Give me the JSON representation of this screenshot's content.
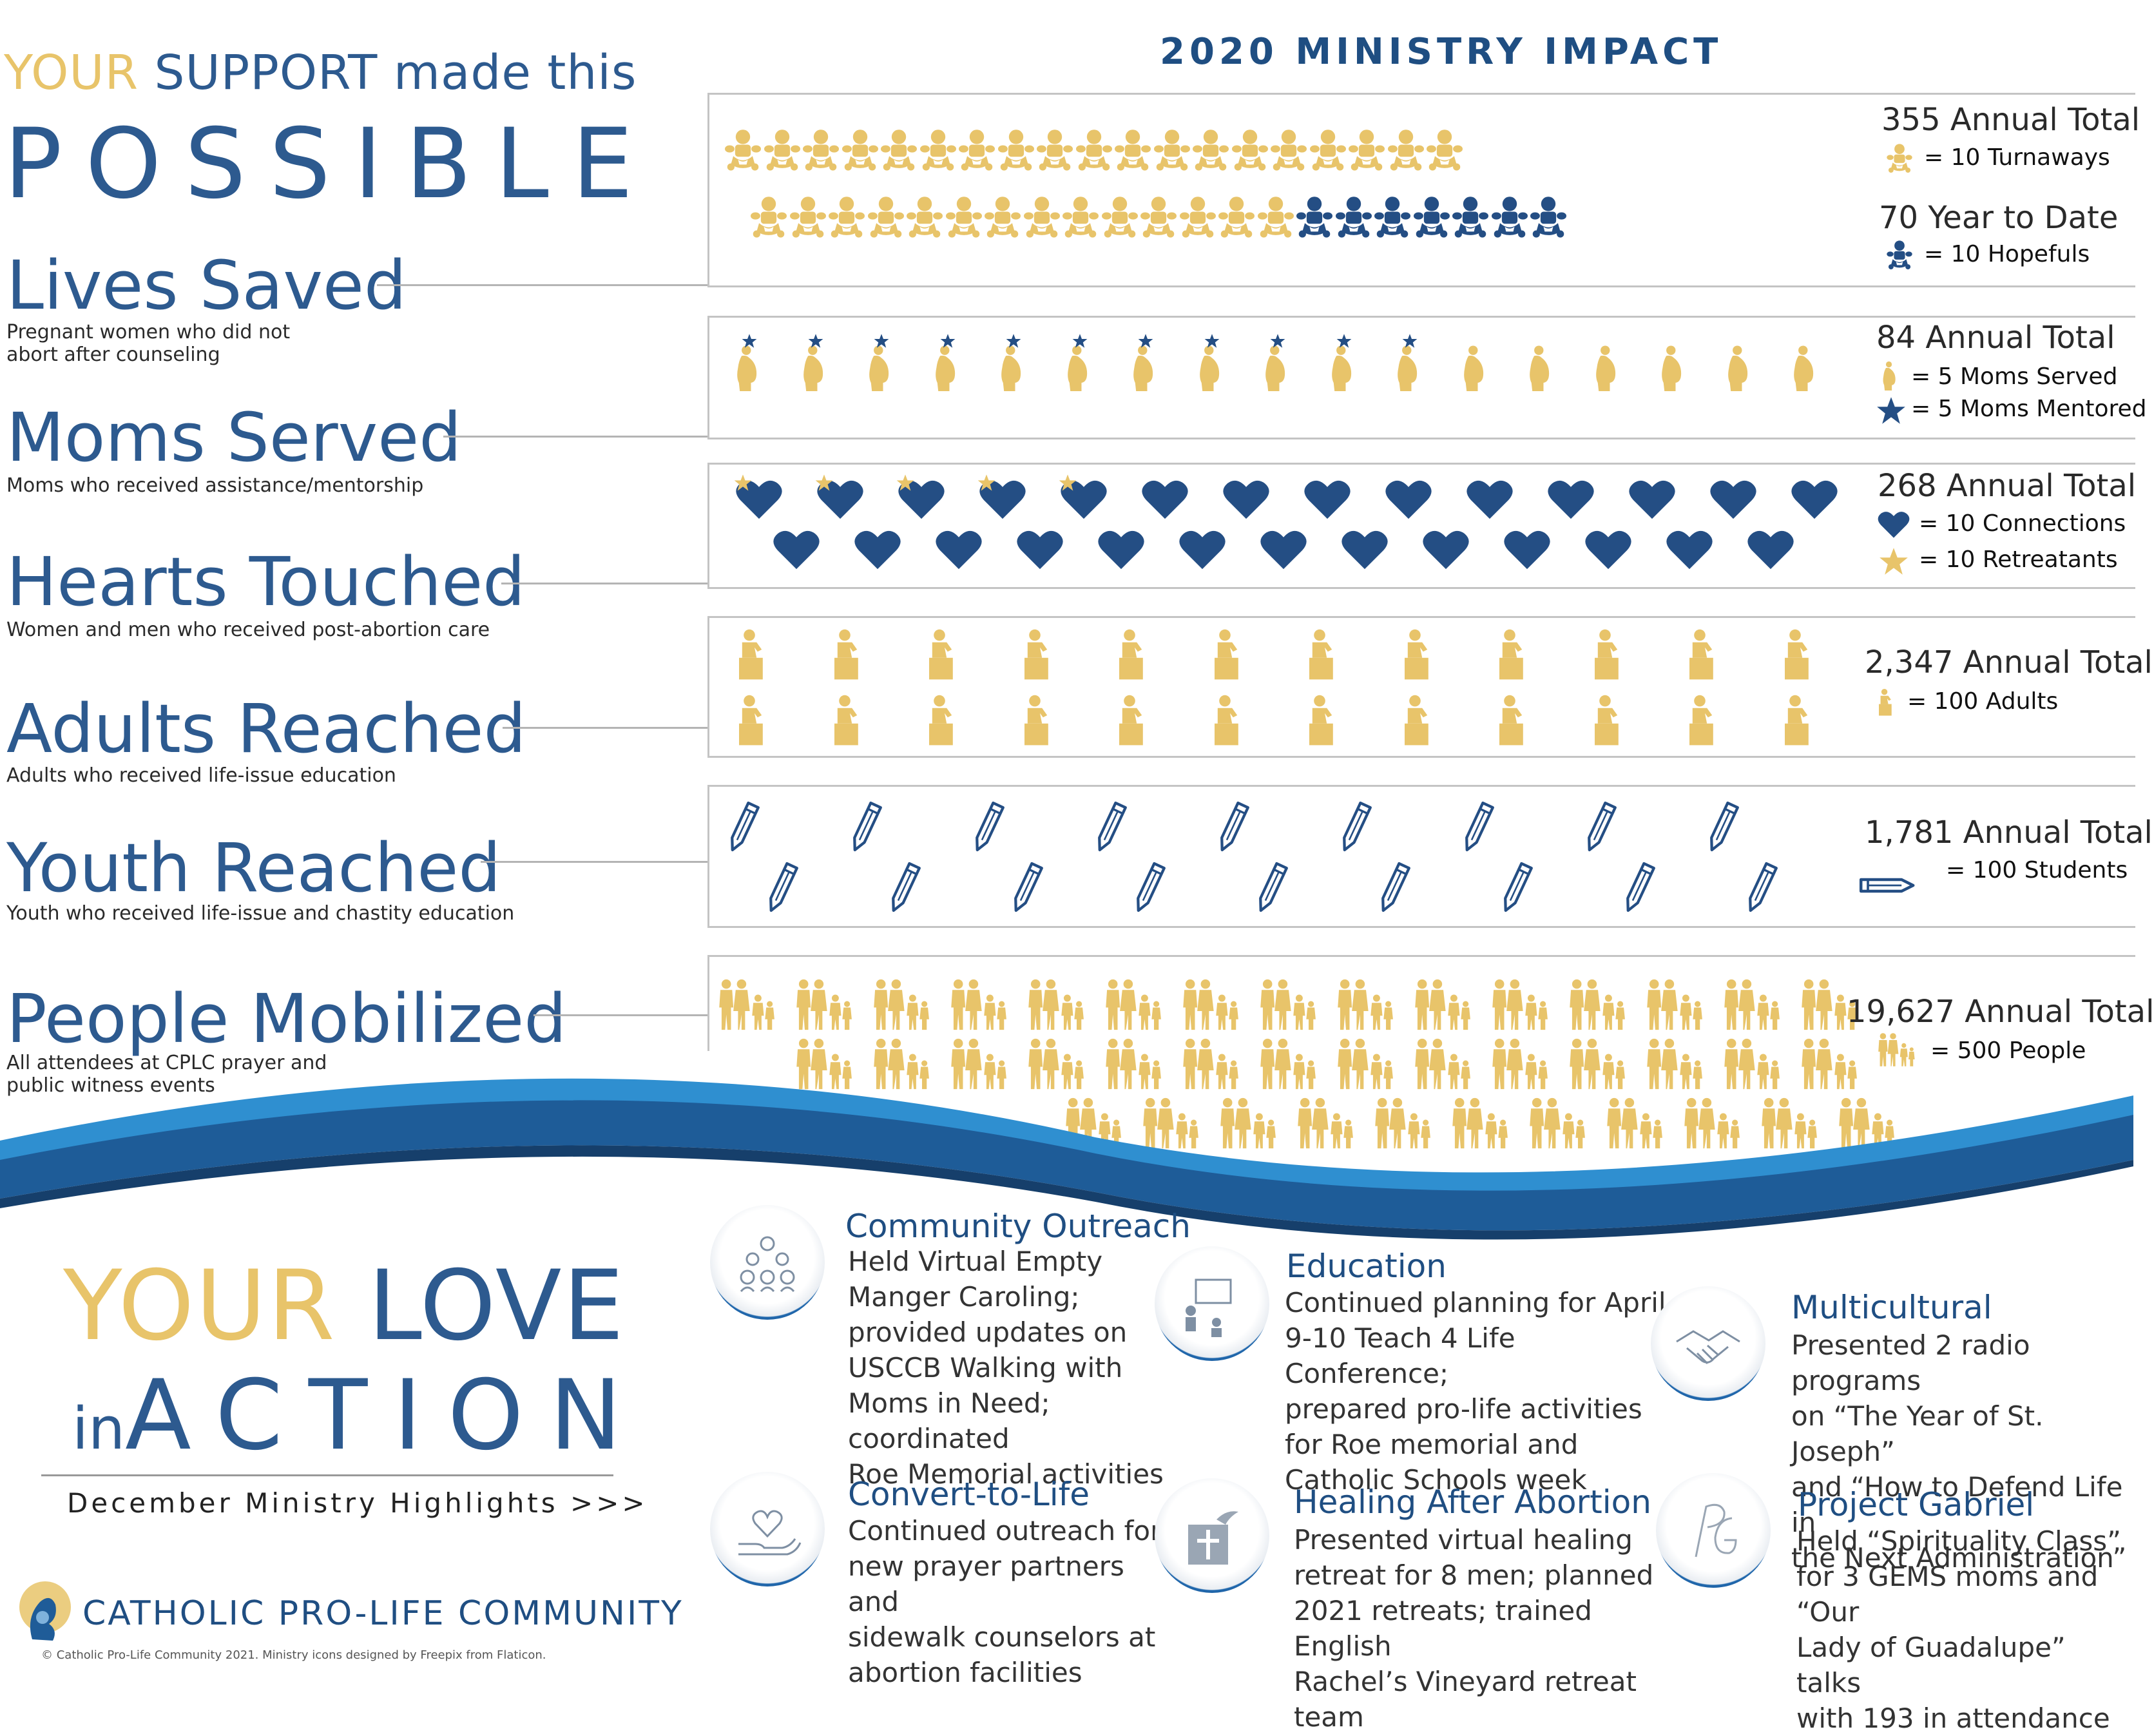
{
  "headline": {
    "your": "YOUR",
    "support": "SUPPORT",
    "made_this": "made this",
    "possible": "POSSIBLE"
  },
  "impact_title": "2020 MINISTRY IMPACT",
  "categories": [
    {
      "title": "Lives Saved",
      "desc": "Pregnant women who did not abort after counseling",
      "total": "355 Annual Total",
      "legend": "= 10 Turnaways",
      "total2": "70 Year to Date",
      "legend2": "= 10 Hopefuls",
      "icon": "baby-icon",
      "gold_count": 35.5,
      "navy_count": 7,
      "color_gold": "#e8c46a",
      "color_navy": "#244e84"
    },
    {
      "title": "Moms Served",
      "desc": "Moms who received assistance/mentorship",
      "total": "84 Annual Total",
      "legend": "= 5 Moms Served",
      "legend2": "= 5 Moms Mentored",
      "icon": "pregnant-woman-icon",
      "count": 16.8,
      "starred": 11
    },
    {
      "title": "Hearts Touched",
      "desc": "Women and men who received post-abortion care",
      "total": "268 Annual Total",
      "legend": "= 10 Connections",
      "legend2": "= 10 Retreatants",
      "icon": "heart-icon",
      "count": 26.8,
      "starred": 5
    },
    {
      "title": "Adults Reached",
      "desc": "Adults who received life-issue education",
      "total": "2,347 Annual Total",
      "legend": "= 100 Adults",
      "icon": "teacher-icon",
      "count": 23.47
    },
    {
      "title": "Youth Reached",
      "desc": "Youth who received life-issue and chastity education",
      "total": "1,781 Annual Total",
      "legend": "= 100 Students",
      "icon": "pencil-icon",
      "count": 17.81
    },
    {
      "title": "People Mobilized",
      "desc": "All attendees at CPLC prayer and public witness events",
      "total": "19,627 Annual Total",
      "legend": "= 500 People",
      "icon": "family-icon",
      "count": 39.25
    }
  ],
  "bottom": {
    "your": "YOUR",
    "love": "LOVE",
    "in": "in",
    "action": "ACTION",
    "december": "December Ministry Highlights >>>",
    "org": "CATHOLIC PRO-LIFE COMMUNITY",
    "copyright": "© Catholic Pro-Life Community 2021. Ministry icons designed by Freepix from Flaticon."
  },
  "highlights": [
    {
      "title": "Community Outreach",
      "icon": "community-icon",
      "lines": [
        "Held Virtual Empty",
        "Manger Caroling;",
        "provided updates on",
        "USCCB  Walking with",
        "Moms in Need; coordinated",
        "Roe Memorial activities"
      ]
    },
    {
      "title": "Education",
      "icon": "classroom-icon",
      "lines": [
        "Continued planning for April",
        "9-10 Teach 4 Life Conference;",
        "prepared pro-life activities",
        "for Roe memorial and",
        "Catholic Schools week"
      ]
    },
    {
      "title": "Multicultural",
      "icon": "handshake-icon",
      "lines": [
        "Presented 2 radio programs",
        "on “The Year of St. Joseph”",
        "and “How to Defend Life in",
        "the Next Administration”"
      ]
    },
    {
      "title": "Convert-to-Life",
      "icon": "heart-hand-icon",
      "lines": [
        "Continued outreach for",
        "new prayer partners and",
        "sidewalk counselors at",
        "abortion facilities"
      ]
    },
    {
      "title": "Healing After Abortion",
      "icon": "dove-cross-icon",
      "lines": [
        "Presented virtual healing",
        "retreat for 8 men; planned",
        "2021 retreats; trained English",
        "Rachel’s Vineyard retreat team"
      ]
    },
    {
      "title": "Project Gabriel",
      "icon": "pg-monogram-icon",
      "lines": [
        "Held “Spirituality Class”",
        "for 3 GEMS moms and “Our",
        "Lady of Guadalupe” talks",
        "with 193 in attendance"
      ]
    }
  ]
}
